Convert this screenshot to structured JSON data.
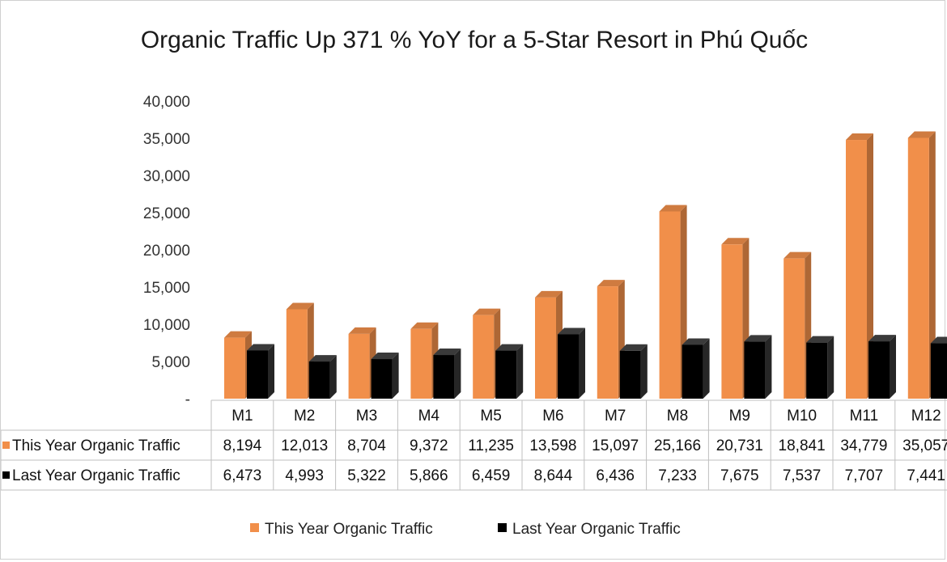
{
  "chart_data": {
    "type": "bar",
    "title": "Organic Traffic Up 371 % YoY for a 5-Star Resort in Phú Quốc",
    "categories": [
      "M1",
      "M2",
      "M3",
      "M4",
      "M5",
      "M6",
      "M7",
      "M8",
      "M9",
      "M10",
      "M11",
      "M12"
    ],
    "series": [
      {
        "name": "This Year Organic Traffic",
        "color": "#f18f4a",
        "values": [
          8194,
          12013,
          8704,
          9372,
          11235,
          13598,
          15097,
          25166,
          20731,
          18841,
          34779,
          35057
        ],
        "labels": [
          "8,194",
          "12,013",
          "8,704",
          "9,372",
          "11,235",
          "13,598",
          "15,097",
          "25,166",
          "20,731",
          "18,841",
          "34,779",
          "35,057"
        ]
      },
      {
        "name": "Last Year Organic Traffic",
        "color": "#000000",
        "values": [
          6473,
          4993,
          5322,
          5866,
          6459,
          8644,
          6436,
          7233,
          7675,
          7537,
          7707,
          7441
        ],
        "labels": [
          "6,473",
          "4,993",
          "5,322",
          "5,866",
          "6,459",
          "8,644",
          "6,436",
          "7,233",
          "7,675",
          "7,537",
          "7,707",
          "7,441"
        ]
      }
    ],
    "y_ticks": [
      "-",
      "5,000",
      "10,000",
      "15,000",
      "20,000",
      "25,000",
      "30,000",
      "35,000",
      "40,000"
    ],
    "ylim": [
      0,
      40000
    ],
    "data_table": true,
    "legend": "bottom"
  }
}
